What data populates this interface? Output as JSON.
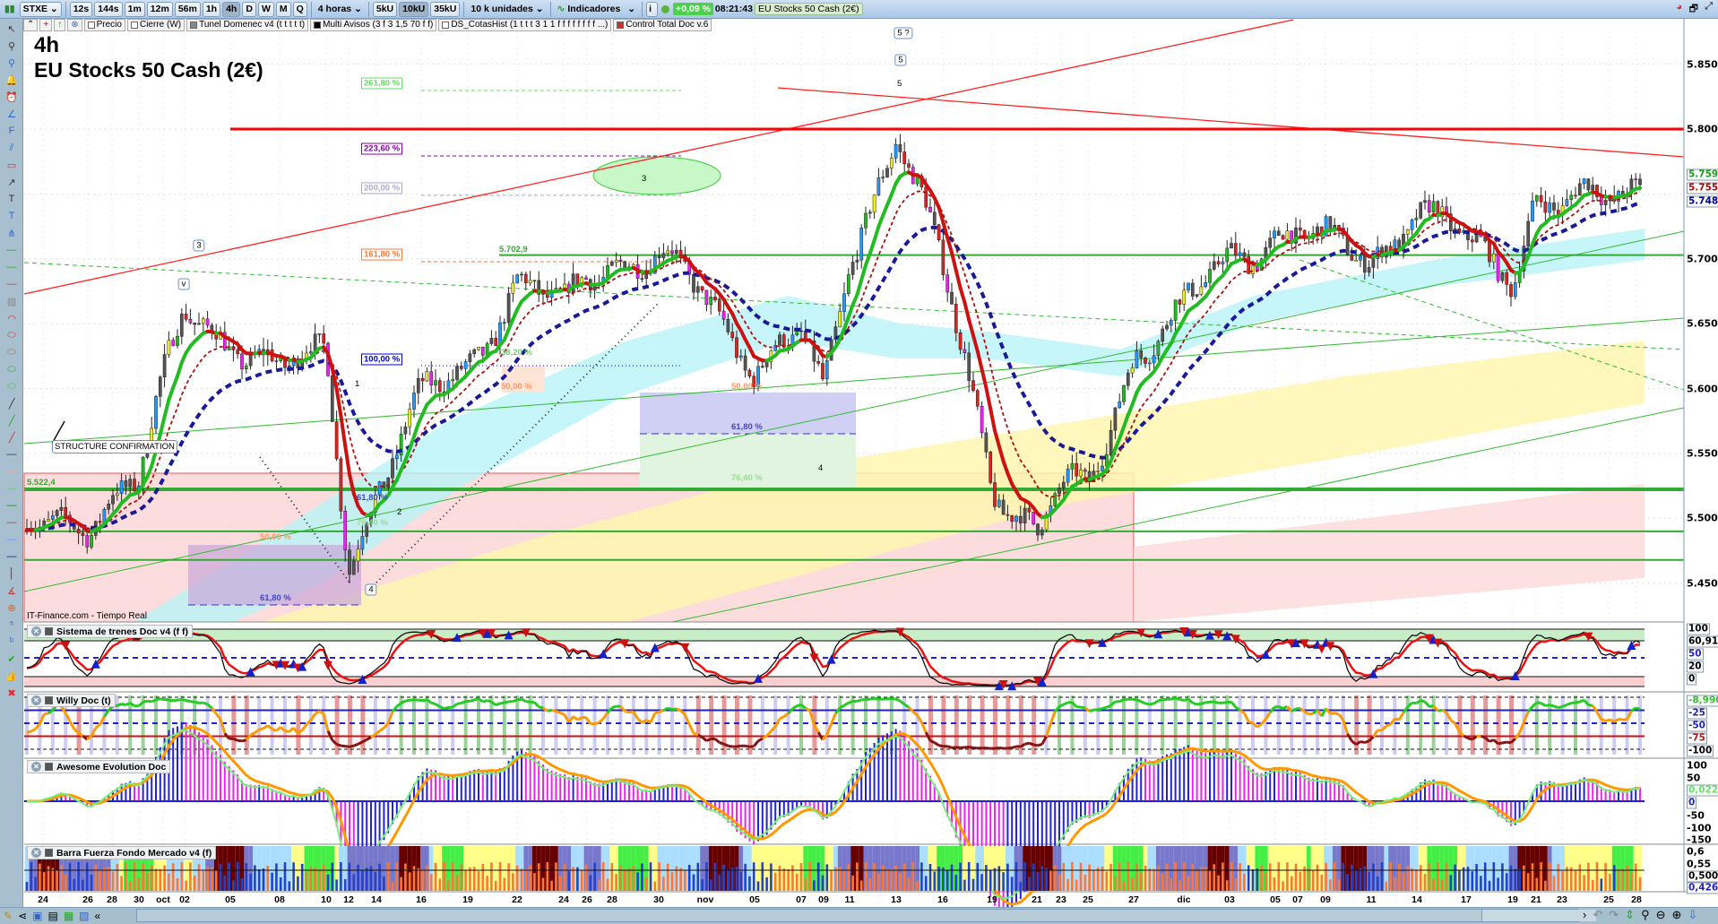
{
  "toolbar": {
    "symbol": "STXE",
    "timeframes": [
      "12s",
      "144s",
      "1m",
      "12m",
      "56m",
      "1h",
      "4h",
      "D",
      "W",
      "M",
      "Q"
    ],
    "active_timeframe": "4h",
    "period_select": "4 horas",
    "units": [
      "5kU",
      "10kU",
      "35kU"
    ],
    "active_unit": "10kU",
    "units_select": "10 k unidades",
    "indicators_label": "Indicadores",
    "change_pct": "+0,09 %",
    "time": "08:21:43",
    "instrument": "EU Stocks 50 Cash (2€)"
  },
  "indicator_bar": [
    "Precio",
    "Cierre (W)",
    "Tunel Domenec v4 (t t t t t)",
    "Multi Avisos (3 f 3 1,5 70 f f)",
    "DS_CotasHist (1 t t t 3 1 1 f f f f f f f f ...)",
    "Control Total Doc v.6"
  ],
  "chart": {
    "timeframe_title": "4h",
    "instrument_title": "EU Stocks 50 Cash (2€)",
    "source": "IT-Finance.com - Tiempo Real",
    "note": "STRUCTURE CONFIRMATION",
    "level_labels": [
      "5.702,9",
      "5.522,4"
    ],
    "fib_labels": [
      "261,80 %",
      "223,60 %",
      "200,00 %",
      "161,80 %",
      "100,00 %"
    ],
    "retrace_labels_1": [
      "38,20 %",
      "50,00 %",
      "61,80 %",
      "76,40 %"
    ],
    "retrace_labels_2": [
      "50,00 %",
      "61,80 %"
    ],
    "retrace_labels_3": [
      "50,00 %",
      "61,80 %",
      "76,40 %"
    ],
    "wave_labels": [
      "5 ?",
      "5",
      "5",
      "3",
      "v",
      "4",
      "3",
      "1",
      "2",
      "4"
    ],
    "price_axis": [
      "5.850",
      "5.800",
      "5.700",
      "5.650",
      "5.600",
      "5.550",
      "5.500",
      "5.450"
    ],
    "price_tags": [
      {
        "value": "5.759,7",
        "color": "#1aa01a"
      },
      {
        "value": "5.755,7",
        "color": "#c00000"
      },
      {
        "value": "5.748,6",
        "color": "#0000a0"
      }
    ],
    "horizontal_levels": [
      5800,
      5702.9,
      5522.4,
      5490,
      5468
    ]
  },
  "panels": [
    {
      "title": "Sistema de trenes Doc v4 (f f)",
      "axis": [
        "100",
        "60,913",
        "50",
        "20",
        "0"
      ]
    },
    {
      "title": "Willy Doc (t)",
      "axis": [
        "-8,9908",
        "-25",
        "-50",
        "-75",
        "-100"
      ]
    },
    {
      "title": "Awesome Evolution Doc",
      "axis": [
        "100",
        "50",
        "0,0221",
        "0",
        "-50",
        "-100",
        "-150"
      ]
    },
    {
      "title": "Barra Fuerza Fondo Mercado v4 (f)",
      "axis": [
        "0,6",
        "0,55",
        "0,5000",
        "0,4261"
      ]
    }
  ],
  "date_axis": [
    "24",
    "26",
    "28",
    "30",
    "oct",
    "02",
    "05",
    "08",
    "10",
    "12",
    "14",
    "16",
    "19",
    "22",
    "24",
    "26",
    "28",
    "30",
    "nov",
    "05",
    "07",
    "09",
    "11",
    "13",
    "16",
    "19",
    "21",
    "23",
    "25",
    "27",
    "dic",
    "03",
    "05",
    "07",
    "09",
    "11",
    "14",
    "17",
    "19",
    "21",
    "23",
    "25",
    "28"
  ],
  "chart_data": {
    "type": "candlestick",
    "approx_close_at_date_ticks": [
      5490,
      5500,
      5520,
      5530,
      5600,
      5660,
      5640,
      5610,
      5630,
      5470,
      5520,
      5590,
      5620,
      5680,
      5660,
      5690,
      5700,
      5700,
      5670,
      5620,
      5640,
      5590,
      5700,
      5800,
      5690,
      5530,
      5490,
      5520,
      5520,
      5630,
      5660,
      5700,
      5720,
      5720,
      5710,
      5700,
      5740,
      5710,
      5690,
      5750,
      5740,
      5745,
      5758
    ],
    "ylim": [
      5420,
      5880
    ]
  },
  "colors": {
    "up": "#22bb22",
    "down": "#dd2222",
    "resistance": "#ff0000",
    "support": "#33aa33",
    "ma_fast": "#22bb22",
    "ma_mid": "#aa1111",
    "ma_slow": "#1a1a99"
  }
}
